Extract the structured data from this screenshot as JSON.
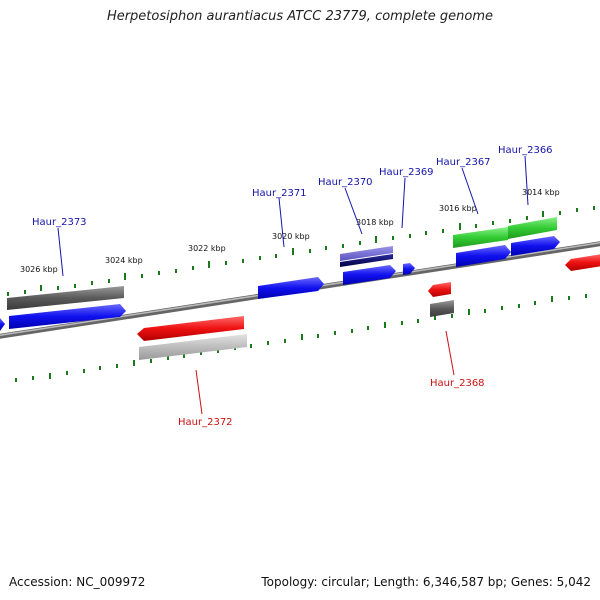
{
  "title": "Herpetosiphon aurantiacus ATCC 23779, complete genome",
  "footer": {
    "accession": "Accession: NC_009972",
    "topology": "Topology: circular; Length: 6,346,587 bp; Genes: 5,042"
  },
  "colors": {
    "forward_gene": "#1010ee",
    "reverse_gene": "#ee1111",
    "rna_gene": "#33cc33",
    "other_feature": "#606060",
    "pseudo_feature": "#b0b0b0",
    "tick": "#1a7a1a",
    "label_forward": "#1414aa",
    "label_reverse": "#cc1111"
  },
  "tick_labels": [
    {
      "text": "3026 kbp"
    },
    {
      "text": "3024 kbp"
    },
    {
      "text": "3022 kbp"
    },
    {
      "text": "3020 kbp"
    },
    {
      "text": "3018 kbp"
    },
    {
      "text": "3016 kbp"
    },
    {
      "text": "3014 kbp"
    }
  ],
  "genes": [
    {
      "name": "Haur_2373",
      "strand": "forward"
    },
    {
      "name": "Haur_2372",
      "strand": "reverse"
    },
    {
      "name": "Haur_2371",
      "strand": "forward"
    },
    {
      "name": "Haur_2370",
      "strand": "forward"
    },
    {
      "name": "Haur_2369",
      "strand": "forward"
    },
    {
      "name": "Haur_2368",
      "strand": "reverse"
    },
    {
      "name": "Haur_2367",
      "strand": "forward"
    },
    {
      "name": "Haur_2366",
      "strand": "forward"
    }
  ]
}
